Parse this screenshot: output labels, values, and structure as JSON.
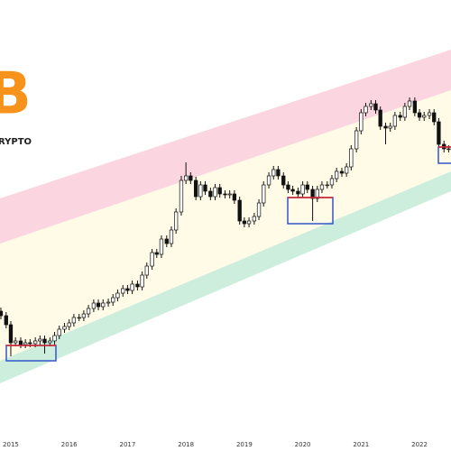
{
  "chart_data": {
    "type": "candlestick",
    "logo": "B",
    "brand": "RYPTO",
    "xlim": [
      2014.815,
      2022.54
    ],
    "xticks": [
      2015,
      2016,
      2017,
      2018,
      2019,
      2020,
      2021,
      2022
    ],
    "ylim": [
      0,
      500
    ],
    "up_color": "#ffffff",
    "down_color": "#111111",
    "x": [
      2014.83,
      2014.92,
      2015.0,
      2015.08,
      2015.17,
      2015.25,
      2015.33,
      2015.42,
      2015.5,
      2015.58,
      2015.67,
      2015.75,
      2015.83,
      2015.92,
      2016.0,
      2016.08,
      2016.17,
      2016.25,
      2016.33,
      2016.42,
      2016.5,
      2016.58,
      2016.67,
      2016.75,
      2016.83,
      2016.92,
      2017.0,
      2017.08,
      2017.17,
      2017.25,
      2017.33,
      2017.42,
      2017.5,
      2017.58,
      2017.67,
      2017.75,
      2017.83,
      2017.92,
      2018.0,
      2018.08,
      2018.17,
      2018.25,
      2018.33,
      2018.42,
      2018.5,
      2018.58,
      2018.67,
      2018.75,
      2018.83,
      2018.92,
      2019.0,
      2019.08,
      2019.17,
      2019.25,
      2019.33,
      2019.42,
      2019.5,
      2019.58,
      2019.67,
      2019.75,
      2019.83,
      2019.92,
      2020.0,
      2020.08,
      2020.17,
      2020.25,
      2020.33,
      2020.42,
      2020.5,
      2020.58,
      2020.67,
      2020.75,
      2020.83,
      2020.92,
      2021.0,
      2021.08,
      2021.17,
      2021.25,
      2021.33,
      2021.42,
      2021.5,
      2021.58,
      2021.67,
      2021.75,
      2021.83,
      2021.92,
      2022.0,
      2022.08,
      2022.17,
      2022.25,
      2022.33,
      2022.42,
      2022.5
    ],
    "open": [
      155,
      150,
      140,
      120,
      122,
      118,
      120,
      119,
      122,
      124,
      120,
      122,
      128,
      135,
      138,
      142,
      148,
      148,
      152,
      158,
      164,
      160,
      164,
      165,
      170,
      175,
      180,
      178,
      185,
      182,
      195,
      205,
      220,
      218,
      235,
      230,
      245,
      265,
      300,
      305,
      300,
      282,
      295,
      288,
      282,
      292,
      285,
      284,
      285,
      278,
      255,
      252,
      255,
      260,
      275,
      295,
      305,
      312,
      305,
      295,
      290,
      288,
      285,
      295,
      290,
      280,
      290,
      295,
      295,
      302,
      310,
      308,
      315,
      335,
      355,
      375,
      382,
      385,
      378,
      360,
      358,
      360,
      372,
      370,
      382,
      388,
      375,
      370,
      372,
      375,
      365,
      340,
      335
    ],
    "high": [
      159,
      154,
      144,
      126,
      126,
      124,
      124,
      126,
      128,
      128,
      126,
      132,
      139,
      142,
      146,
      152,
      152,
      156,
      162,
      168,
      168,
      168,
      169,
      174,
      179,
      184,
      184,
      189,
      189,
      199,
      209,
      224,
      224,
      239,
      239,
      249,
      269,
      305,
      320,
      309,
      304,
      299,
      299,
      292,
      296,
      296,
      289,
      289,
      289,
      282,
      259,
      259,
      264,
      279,
      299,
      309,
      316,
      316,
      309,
      299,
      294,
      292,
      299,
      299,
      294,
      294,
      299,
      299,
      306,
      314,
      314,
      319,
      339,
      359,
      379,
      386,
      389,
      389,
      382,
      364,
      364,
      376,
      376,
      386,
      392,
      392,
      379,
      376,
      379,
      379,
      369,
      344,
      339
    ],
    "low": [
      146,
      136,
      105,
      116,
      114,
      114,
      115,
      115,
      118,
      108,
      116,
      118,
      124,
      131,
      134,
      138,
      144,
      144,
      148,
      154,
      156,
      156,
      160,
      161,
      166,
      171,
      174,
      174,
      178,
      178,
      191,
      201,
      214,
      214,
      226,
      226,
      241,
      261,
      296,
      296,
      278,
      278,
      284,
      278,
      278,
      281,
      280,
      280,
      274,
      251,
      248,
      248,
      251,
      256,
      271,
      291,
      301,
      301,
      291,
      286,
      284,
      281,
      281,
      286,
      255,
      276,
      286,
      291,
      291,
      298,
      304,
      304,
      311,
      331,
      351,
      371,
      378,
      374,
      356,
      340,
      354,
      356,
      366,
      366,
      378,
      371,
      366,
      366,
      368,
      361,
      336,
      331,
      331
    ],
    "close": [
      150,
      140,
      120,
      122,
      118,
      120,
      119,
      122,
      124,
      120,
      122,
      128,
      135,
      138,
      142,
      148,
      148,
      152,
      158,
      164,
      160,
      164,
      165,
      170,
      175,
      180,
      178,
      185,
      182,
      195,
      205,
      220,
      218,
      235,
      230,
      245,
      265,
      300,
      305,
      300,
      282,
      295,
      288,
      282,
      292,
      285,
      284,
      285,
      278,
      255,
      252,
      255,
      260,
      275,
      295,
      305,
      312,
      305,
      295,
      290,
      288,
      285,
      295,
      290,
      280,
      290,
      295,
      295,
      302,
      310,
      308,
      315,
      335,
      355,
      375,
      382,
      385,
      378,
      360,
      358,
      360,
      372,
      370,
      382,
      388,
      375,
      370,
      372,
      375,
      365,
      340,
      335,
      335
    ]
  }
}
